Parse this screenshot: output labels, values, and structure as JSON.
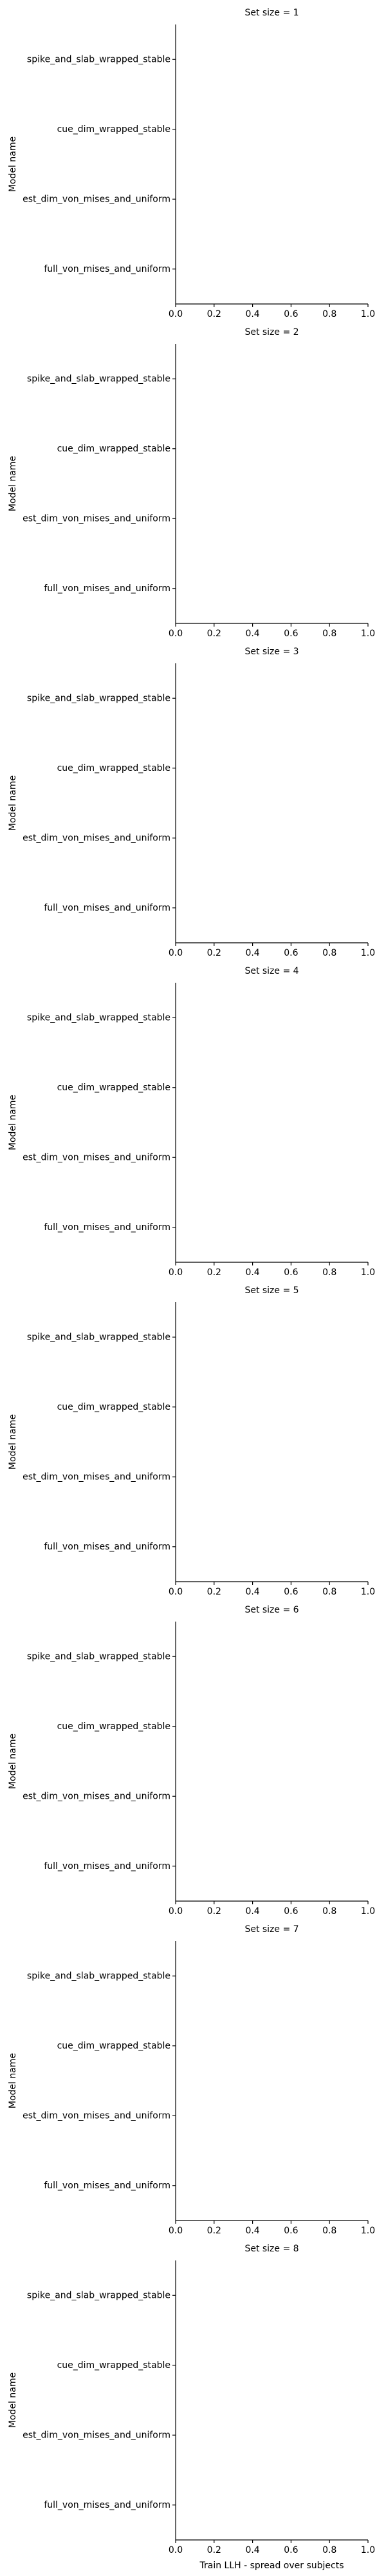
{
  "chart_data": [
    {
      "type": "bar",
      "title": "Set size = 1",
      "ylabel": "Model name",
      "categories": [
        "spike_and_slab_wrapped_stable",
        "cue_dim_wrapped_stable",
        "est_dim_von_mises_and_uniform",
        "full_von_mises_and_uniform"
      ],
      "values": [
        null,
        null,
        null,
        null
      ],
      "xlim": [
        0,
        1
      ],
      "xticks": [
        {
          "value": 0,
          "label": "0.0"
        },
        0.2,
        0.4,
        0.6,
        0.8,
        {
          "value": 1,
          "label": "1.0"
        }
      ]
    },
    {
      "type": "bar",
      "title": "Set size = 2",
      "ylabel": "Model name",
      "categories": [
        "spike_and_slab_wrapped_stable",
        "cue_dim_wrapped_stable",
        "est_dim_von_mises_and_uniform",
        "full_von_mises_and_uniform"
      ],
      "values": [
        null,
        null,
        null,
        null
      ],
      "xlim": [
        0,
        1
      ],
      "xticks": [
        {
          "value": 0,
          "label": "0.0"
        },
        0.2,
        0.4,
        0.6,
        0.8,
        {
          "value": 1,
          "label": "1.0"
        }
      ]
    },
    {
      "type": "bar",
      "title": "Set size = 3",
      "ylabel": "Model name",
      "categories": [
        "spike_and_slab_wrapped_stable",
        "cue_dim_wrapped_stable",
        "est_dim_von_mises_and_uniform",
        "full_von_mises_and_uniform"
      ],
      "values": [
        null,
        null,
        null,
        null
      ],
      "xlim": [
        0,
        1
      ],
      "xticks": [
        {
          "value": 0,
          "label": "0.0"
        },
        0.2,
        0.4,
        0.6,
        0.8,
        {
          "value": 1,
          "label": "1.0"
        }
      ]
    },
    {
      "type": "bar",
      "title": "Set size = 4",
      "ylabel": "Model name",
      "categories": [
        "spike_and_slab_wrapped_stable",
        "cue_dim_wrapped_stable",
        "est_dim_von_mises_and_uniform",
        "full_von_mises_and_uniform"
      ],
      "values": [
        null,
        null,
        null,
        null
      ],
      "xlim": [
        0,
        1
      ],
      "xticks": [
        {
          "value": 0,
          "label": "0.0"
        },
        0.2,
        0.4,
        0.6,
        0.8,
        {
          "value": 1,
          "label": "1.0"
        }
      ]
    },
    {
      "type": "bar",
      "title": "Set size = 5",
      "ylabel": "Model name",
      "categories": [
        "spike_and_slab_wrapped_stable",
        "cue_dim_wrapped_stable",
        "est_dim_von_mises_and_uniform",
        "full_von_mises_and_uniform"
      ],
      "values": [
        null,
        null,
        null,
        null
      ],
      "xlim": [
        0,
        1
      ],
      "xticks": [
        {
          "value": 0,
          "label": "0.0"
        },
        0.2,
        0.4,
        0.6,
        0.8,
        {
          "value": 1,
          "label": "1.0"
        }
      ]
    },
    {
      "type": "bar",
      "title": "Set size = 6",
      "ylabel": "Model name",
      "categories": [
        "spike_and_slab_wrapped_stable",
        "cue_dim_wrapped_stable",
        "est_dim_von_mises_and_uniform",
        "full_von_mises_and_uniform"
      ],
      "values": [
        null,
        null,
        null,
        null
      ],
      "xlim": [
        0,
        1
      ],
      "xticks": [
        {
          "value": 0,
          "label": "0.0"
        },
        0.2,
        0.4,
        0.6,
        0.8,
        {
          "value": 1,
          "label": "1.0"
        }
      ]
    },
    {
      "type": "bar",
      "title": "Set size = 7",
      "ylabel": "Model name",
      "categories": [
        "spike_and_slab_wrapped_stable",
        "cue_dim_wrapped_stable",
        "est_dim_von_mises_and_uniform",
        "full_von_mises_and_uniform"
      ],
      "values": [
        null,
        null,
        null,
        null
      ],
      "xlim": [
        0,
        1
      ],
      "xticks": [
        {
          "value": 0,
          "label": "0.0"
        },
        0.2,
        0.4,
        0.6,
        0.8,
        {
          "value": 1,
          "label": "1.0"
        }
      ]
    },
    {
      "type": "bar",
      "title": "Set size = 8",
      "ylabel": "Model name",
      "xlabel": "Train LLH - spread over subjects",
      "categories": [
        "spike_and_slab_wrapped_stable",
        "cue_dim_wrapped_stable",
        "est_dim_von_mises_and_uniform",
        "full_von_mises_and_uniform"
      ],
      "values": [
        null,
        null,
        null,
        null
      ],
      "xlim": [
        0,
        1
      ],
      "xticks": [
        {
          "value": 0,
          "label": "0.0"
        },
        0.2,
        0.4,
        0.6,
        0.8,
        {
          "value": 1,
          "label": "1.0"
        }
      ]
    }
  ]
}
